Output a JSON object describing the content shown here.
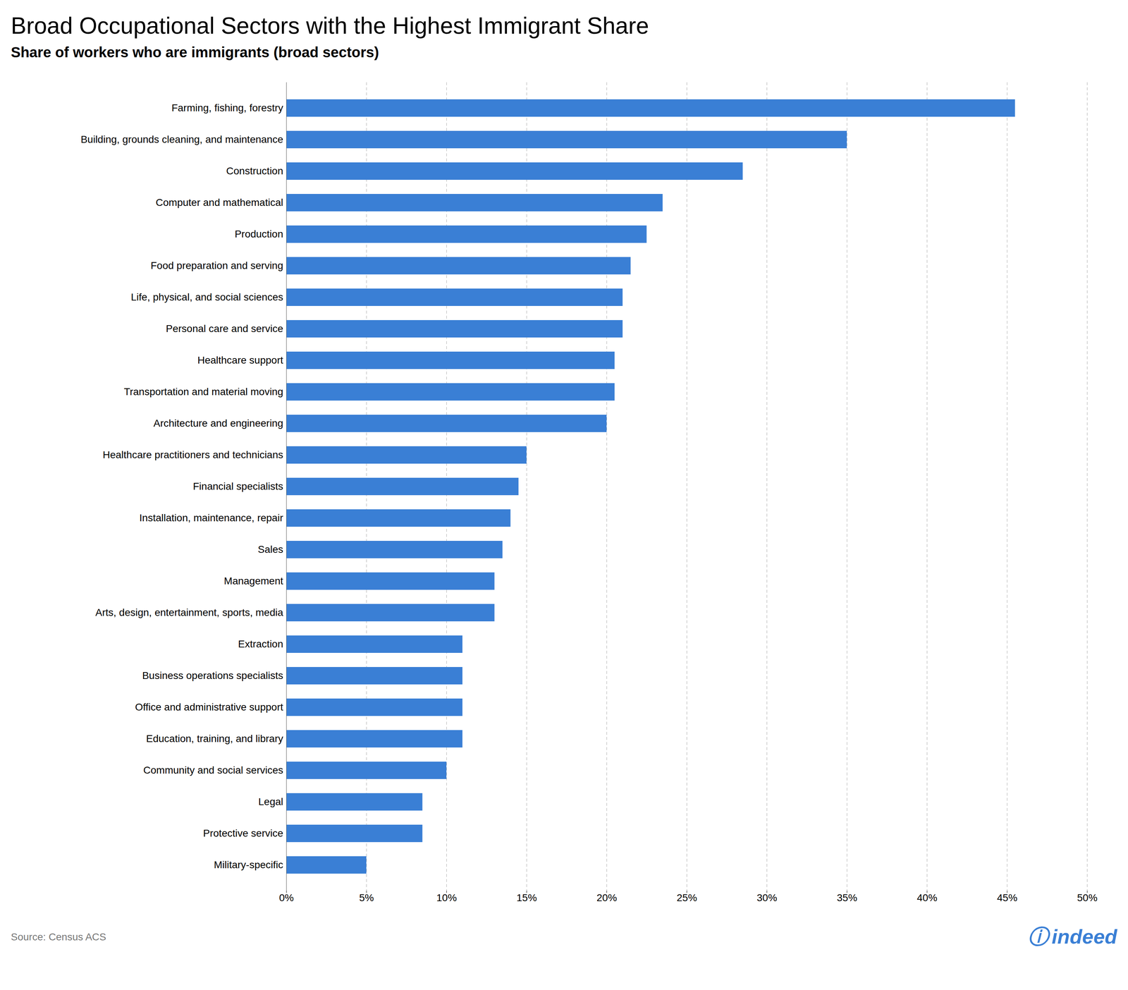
{
  "chart_data": {
    "type": "bar",
    "orientation": "horizontal",
    "title": "Broad Occupational Sectors with the Highest Immigrant Share",
    "subtitle": "Share of workers who are immigrants (broad sectors)",
    "caption": "Source: Census ACS",
    "annotations": [
      "ⓘ",
      "indeed"
    ],
    "categories": [
      "Farming, fishing, forestry",
      "Building, grounds cleaning, and maintenance",
      "Construction",
      "Computer and mathematical",
      "Production",
      "Food preparation and serving",
      "Life, physical, and social sciences",
      "Personal care and service",
      "Healthcare support",
      "Transportation and material moving",
      "Architecture and engineering",
      "Healthcare practitioners and technicians",
      "Financial specialists",
      "Installation, maintenance, repair",
      "Sales",
      "Management",
      "Arts, design, entertainment, sports, media",
      "Extraction",
      "Business operations specialists",
      "Office and administrative support",
      "Education, training, and library",
      "Community and social services",
      "Legal",
      "Protective service",
      "Military-specific"
    ],
    "values": [
      45.5,
      35.0,
      28.5,
      23.5,
      22.5,
      21.5,
      21.0,
      21.0,
      20.5,
      20.5,
      20.0,
      15.0,
      14.5,
      14.0,
      13.5,
      13.0,
      13.0,
      11.0,
      11.0,
      11.0,
      11.0,
      10.0,
      8.5,
      8.5,
      5.0
    ],
    "color": "#3a7fd5",
    "xlim": [
      0,
      50
    ],
    "xticks": [
      {
        "value": 0,
        "label": "0%"
      },
      {
        "value": 5,
        "label": "5%"
      },
      {
        "value": 10,
        "label": "10%"
      },
      {
        "value": 15,
        "label": "15%"
      },
      {
        "value": 20,
        "label": "20%"
      },
      {
        "value": 25,
        "label": "25%"
      },
      {
        "value": 30,
        "label": "30%"
      },
      {
        "value": 35,
        "label": "35%"
      },
      {
        "value": 40,
        "label": "40%"
      },
      {
        "value": 45,
        "label": "45%"
      },
      {
        "value": 50,
        "label": "50%"
      }
    ],
    "grid": true
  }
}
